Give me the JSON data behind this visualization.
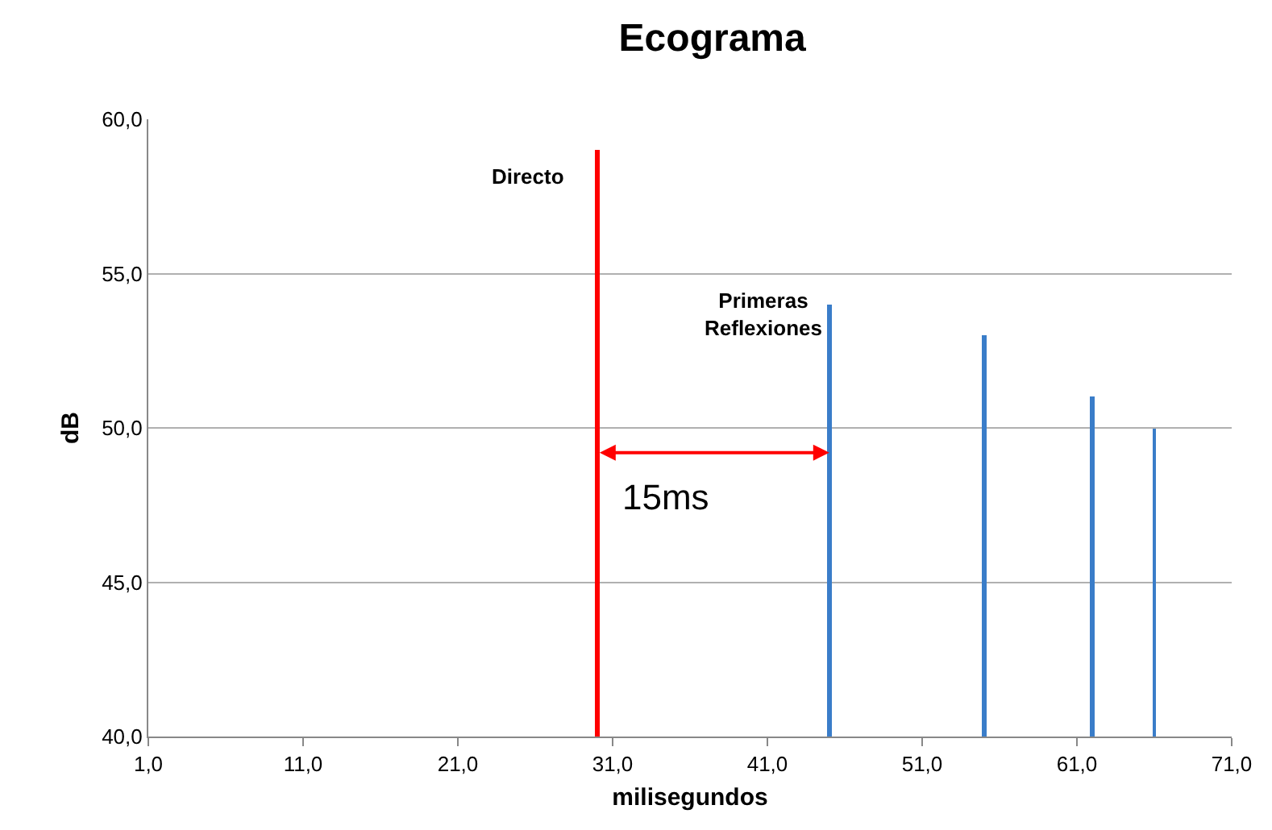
{
  "chart_data": {
    "type": "bar",
    "title": "Ecograma",
    "xlabel": "milisegundos",
    "ylabel": "dB",
    "series": [
      {
        "color": "#ff0000",
        "x": [
          30
        ],
        "values": [
          59
        ]
      },
      {
        "color": "#3a7dc9",
        "x": [
          45,
          55,
          62,
          66
        ],
        "values": [
          54,
          53,
          51,
          50
        ]
      }
    ],
    "xlim": [
      1,
      71
    ],
    "xticks": [
      {
        "value": 1,
        "label": "1,0"
      },
      {
        "value": 11,
        "label": "11,0"
      },
      {
        "value": 21,
        "label": "21,0"
      },
      {
        "value": 31,
        "label": "31,0"
      },
      {
        "value": 41,
        "label": "41,0"
      },
      {
        "value": 51,
        "label": "51,0"
      },
      {
        "value": 61,
        "label": "61,0"
      },
      {
        "value": 71,
        "label": "71,0"
      }
    ],
    "ylim": [
      40,
      60
    ],
    "yticks": [
      {
        "value": 40,
        "label": "40,0"
      },
      {
        "value": 45,
        "label": "45,0"
      },
      {
        "value": 50,
        "label": "50,0"
      },
      {
        "value": 55,
        "label": "55,0"
      },
      {
        "value": 60,
        "label": "60,0"
      }
    ],
    "grid": "y",
    "annotations": [
      "Directo",
      "Primeras\nReflexiones",
      "15ms"
    ]
  }
}
